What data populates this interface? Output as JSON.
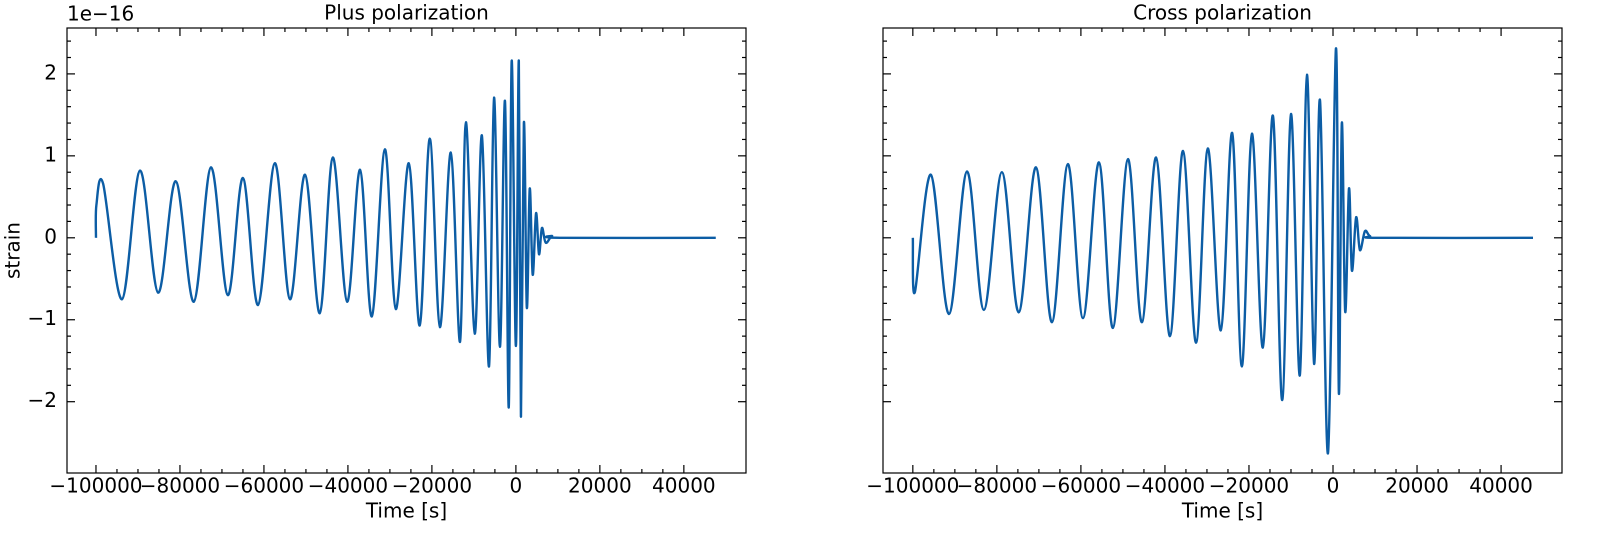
{
  "chart_data": [
    {
      "type": "line",
      "title": "Plus polarization",
      "x_label": "Time [s]",
      "y_label": "strain",
      "offset_text": "1e−16",
      "x": [
        -100000,
        -99900,
        -98300,
        -93800,
        -89500,
        -85200,
        -81000,
        -76700,
        -72600,
        -68600,
        -65000,
        -61400,
        -57400,
        -53800,
        -50200,
        -46700,
        -43600,
        -40200,
        -37100,
        -34300,
        -31200,
        -28600,
        -25500,
        -22900,
        -20500,
        -18100,
        -15500,
        -13300,
        -11900,
        -9800,
        -8100,
        -6400,
        -5200,
        -3800,
        -2600,
        -1700,
        -1000,
        0,
        700,
        1200,
        1900,
        2600,
        3300,
        4000,
        4800,
        5500,
        6200,
        7100,
        8600,
        10500,
        47600
      ],
      "series": [
        {
          "name": "Plus polarization",
          "color": "#0c5da5",
          "values": [
            0,
            0.4,
            0.66,
            -0.75,
            0.82,
            -0.67,
            0.69,
            -0.78,
            0.86,
            -0.7,
            0.73,
            -0.82,
            0.91,
            -0.75,
            0.77,
            -0.92,
            0.98,
            -0.78,
            0.83,
            -0.96,
            1.08,
            -0.87,
            0.91,
            -1.07,
            1.21,
            -1.09,
            1.04,
            -1.27,
            1.41,
            -1.17,
            1.25,
            -1.57,
            1.71,
            -1.33,
            1.67,
            -2.07,
            2.16,
            -1.32,
            2.16,
            -2.18,
            1.4,
            -0.85,
            0.6,
            -0.45,
            0.3,
            -0.2,
            0.12,
            -0.06,
            0.02,
            0,
            0
          ]
        }
      ],
      "xlim": [
        -106900,
        54800
      ],
      "ylim": [
        -2.87,
        2.56
      ],
      "xticks": [
        {
          "value": -100000,
          "label": "−100000"
        },
        {
          "value": -80000,
          "label": "−80000"
        },
        {
          "value": -60000,
          "label": "−60000"
        },
        {
          "value": -40000,
          "label": "−40000"
        },
        {
          "value": -20000,
          "label": "−20000"
        },
        0,
        20000,
        40000
      ],
      "yticks": [
        {
          "value": -2,
          "label": "−2"
        },
        {
          "value": -1,
          "label": "−1"
        },
        0,
        1,
        2
      ]
    },
    {
      "type": "line",
      "title": "Cross polarization",
      "x_label": "Time [s]",
      "x": [
        -100000,
        -99500,
        -95700,
        -91400,
        -87100,
        -83100,
        -78800,
        -74800,
        -70700,
        -66900,
        -63100,
        -59500,
        -55700,
        -52400,
        -48800,
        -45500,
        -42100,
        -38800,
        -35700,
        -32600,
        -29800,
        -26700,
        -24000,
        -21700,
        -19300,
        -16700,
        -14300,
        -12100,
        -10000,
        -7900,
        -6200,
        -4500,
        -3100,
        -1200,
        700,
        1400,
        2100,
        2900,
        3800,
        4500,
        5500,
        6400,
        7600,
        8800,
        11200,
        47600
      ],
      "series": [
        {
          "name": "Cross polarization",
          "color": "#0c5da5",
          "values": [
            0,
            -0.66,
            0.77,
            -0.93,
            0.81,
            -0.88,
            0.8,
            -0.91,
            0.86,
            -1.03,
            0.9,
            -0.98,
            0.92,
            -1.1,
            0.96,
            -1.03,
            0.98,
            -1.2,
            1.06,
            -1.28,
            1.09,
            -1.13,
            1.28,
            -1.57,
            1.27,
            -1.34,
            1.49,
            -1.98,
            1.51,
            -1.68,
            1.99,
            -1.54,
            1.68,
            -2.63,
            2.31,
            -1.9,
            1.4,
            -0.9,
            0.6,
            -0.4,
            0.25,
            -0.15,
            0.08,
            0.02,
            0,
            0
          ]
        }
      ],
      "xlim": [
        -107100,
        54500
      ],
      "ylim": [
        -2.87,
        2.56
      ],
      "xticks": [
        {
          "value": -100000,
          "label": "−100000"
        },
        {
          "value": -80000,
          "label": "−80000"
        },
        {
          "value": -60000,
          "label": "−60000"
        },
        {
          "value": -40000,
          "label": "−40000"
        },
        {
          "value": -20000,
          "label": "−20000"
        },
        0,
        20000,
        40000
      ],
      "yticks": [
        -2,
        -1,
        0,
        1,
        2
      ],
      "ytick_labels": false
    }
  ]
}
